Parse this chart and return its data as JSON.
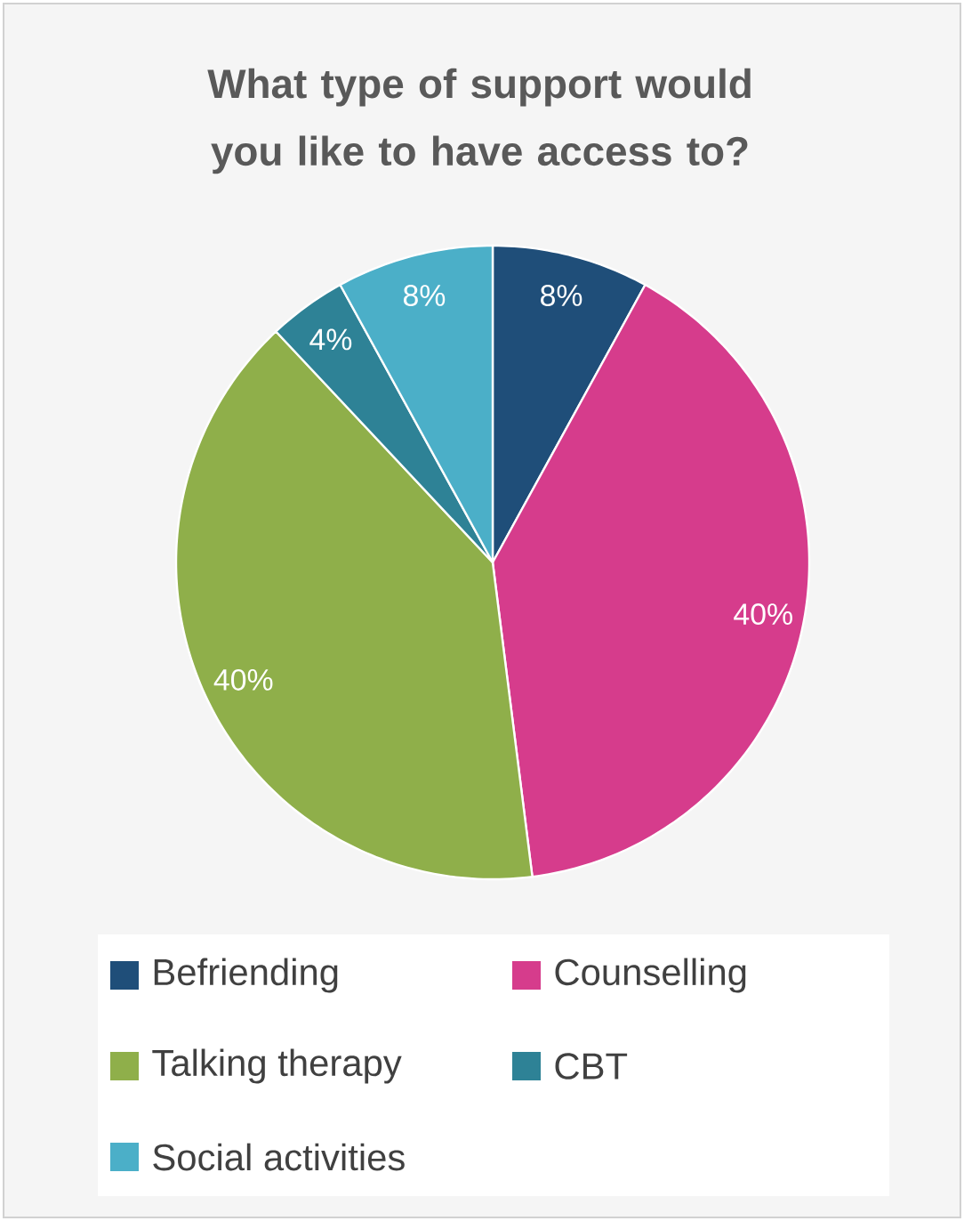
{
  "chart_data": {
    "type": "pie",
    "title": "What type of support would you like to have access to?",
    "categories": [
      "Befriending",
      "Counselling",
      "Talking therapy",
      "CBT",
      "Social activities"
    ],
    "values": [
      8,
      40,
      40,
      4,
      8
    ],
    "colors": [
      "#1f4e79",
      "#d63c8c",
      "#8faf4a",
      "#2e8296",
      "#4bafc8"
    ],
    "value_labels": [
      "8%",
      "40%",
      "40%",
      "4%",
      "8%"
    ],
    "legend": "bottom"
  }
}
